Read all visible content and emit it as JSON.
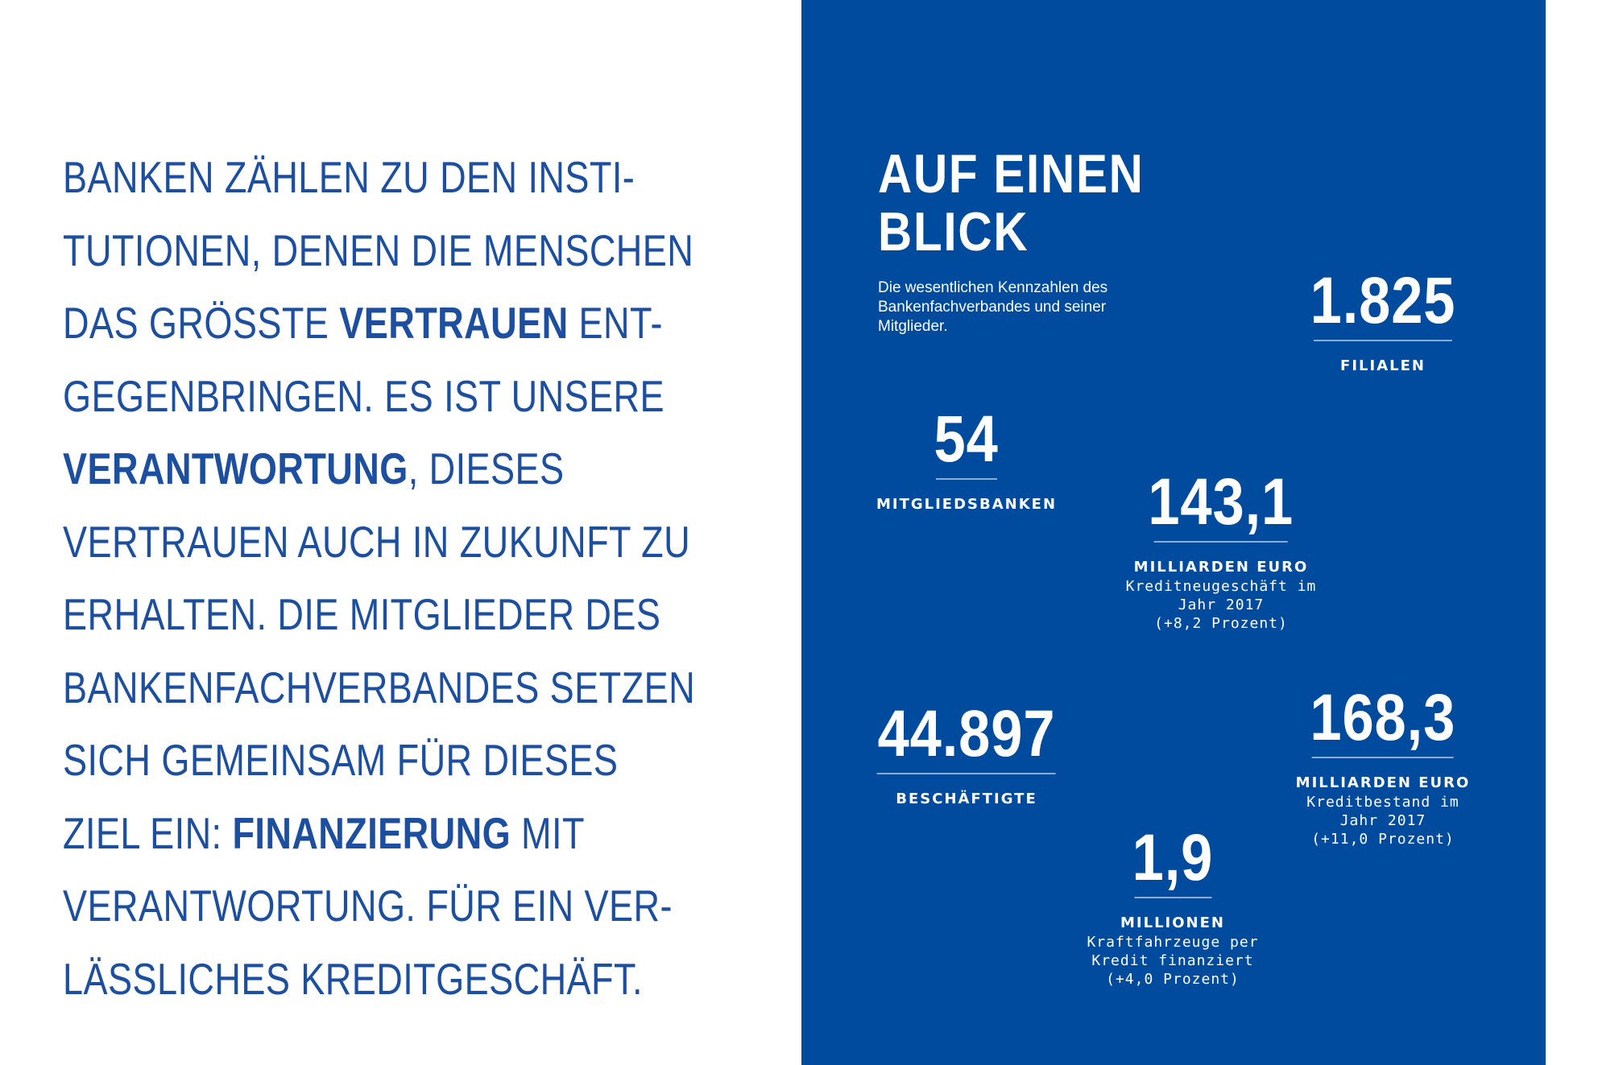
{
  "statement": {
    "lines": [
      {
        "parts": [
          {
            "text": "BANKEN ZÄHLEN ZU DEN INSTI-",
            "bold": false
          }
        ]
      },
      {
        "parts": [
          {
            "text": "TUTIONEN, DENEN DIE MENSCHEN",
            "bold": false
          }
        ]
      },
      {
        "parts": [
          {
            "text": "DAS GRÖSSTE ",
            "bold": false
          },
          {
            "text": "VERTRAUEN",
            "bold": true
          },
          {
            "text": " ENT-",
            "bold": false
          }
        ]
      },
      {
        "parts": [
          {
            "text": "GEGENBRINGEN. ES IST UNSERE",
            "bold": false
          }
        ]
      },
      {
        "parts": [
          {
            "text": "VERANTWORTUNG",
            "bold": true
          },
          {
            "text": ", DIESES",
            "bold": false
          }
        ]
      },
      {
        "parts": [
          {
            "text": "VERTRAUEN AUCH IN ZUKUNFT ZU",
            "bold": false
          }
        ]
      },
      {
        "parts": [
          {
            "text": "ERHALTEN. DIE MITGLIEDER DES",
            "bold": false
          }
        ]
      },
      {
        "parts": [
          {
            "text": "BANKENFACHVERBANDES SETZEN",
            "bold": false
          }
        ]
      },
      {
        "parts": [
          {
            "text": "SICH GEMEINSAM FÜR DIESES",
            "bold": false
          }
        ]
      },
      {
        "parts": [
          {
            "text": "ZIEL EIN: ",
            "bold": false
          },
          {
            "text": "FINANZIERUNG",
            "bold": true
          },
          {
            "text": " MIT",
            "bold": false
          }
        ]
      },
      {
        "parts": [
          {
            "text": "VERANTWORTUNG. FÜR EIN VER-",
            "bold": false
          }
        ]
      },
      {
        "parts": [
          {
            "text": "LÄSSLICHES KREDITGESCHÄFT.",
            "bold": false
          }
        ]
      }
    ]
  },
  "panel": {
    "title_line1": "AUF EINEN",
    "title_line2": "BLICK",
    "subtitle": "Die wesentlichen Kennzahlen des Bankenfachverbandes und seiner Mitglieder.",
    "colors": {
      "background": "#004b9d",
      "text": "#ffffff",
      "statement_text": "#1c4fa0"
    }
  },
  "stats": {
    "filialen": {
      "value": "1.825",
      "unit": "FILIALEN"
    },
    "mitgliedsbanken": {
      "value": "54",
      "unit": "MITGLIEDSBANKEN"
    },
    "kreditneugeschaeft": {
      "value": "143,1",
      "unit": "MILLIARDEN EURO",
      "desc1": "Kreditneugeschäft im",
      "desc2": "Jahr 2017",
      "desc3": "(+8,2 Prozent)"
    },
    "beschaeftigte": {
      "value": "44.897",
      "unit": "BESCHÄFTIGTE"
    },
    "kreditbestand": {
      "value": "168,3",
      "unit": "MILLIARDEN EURO",
      "desc1": "Kreditbestand im",
      "desc2": "Jahr 2017",
      "desc3": "(+11,0 Prozent)"
    },
    "kraftfahrzeuge": {
      "value": "1,9",
      "unit": "MILLIONEN",
      "desc1": "Kraftfahrzeuge per",
      "desc2": "Kredit finanziert",
      "desc3": "(+4,0 Prozent)"
    }
  }
}
